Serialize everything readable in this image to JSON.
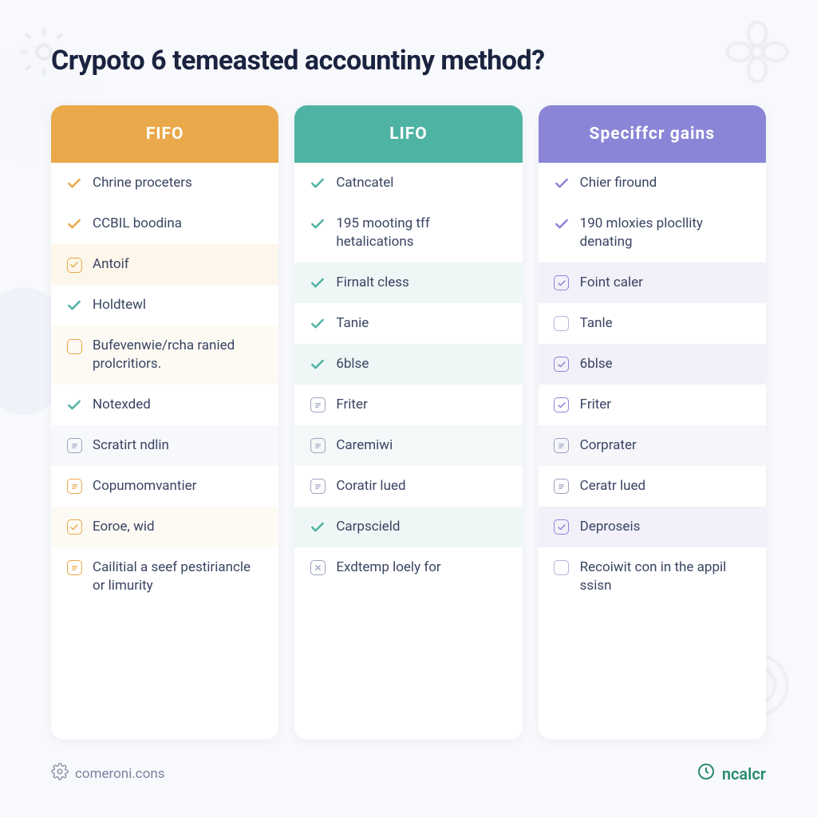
{
  "title": "Crypoto 6 temeasted accountiny method?",
  "background_color": "#f8f9fc",
  "text_color": "#3a4463",
  "title_color": "#1a2340",
  "title_fontsize": 34,
  "item_fontsize": 17,
  "columns": [
    {
      "id": "fifo",
      "header": "FIFO",
      "header_bg": "#e9a84a",
      "header_text": "#ffffff",
      "accent": "#e9a84a",
      "card_bg": "#ffffff",
      "alt_row_bg": "#fdfaf4",
      "items": [
        {
          "icon": "check",
          "icon_color": "#e9a84a",
          "label": "Chrine proceters",
          "bg": "#ffffff"
        },
        {
          "icon": "check",
          "icon_color": "#e9a84a",
          "label": "CCBIL boodina",
          "bg": "#ffffff"
        },
        {
          "icon": "check-box",
          "icon_color": "#e9a84a",
          "label": "Antoif",
          "bg": "#fdf6ea"
        },
        {
          "icon": "check",
          "icon_color": "#4fb3a3",
          "label": "Holdtewl",
          "bg": "#ffffff"
        },
        {
          "icon": "empty-box",
          "icon_color": "#e9a84a",
          "label": "Bufevenwie/rcha ranied prolcritiors.",
          "bg": "#fdfaf4"
        },
        {
          "icon": "check",
          "icon_color": "#4fb3a3",
          "label": "Notexded",
          "bg": "#ffffff"
        },
        {
          "icon": "doc-box",
          "icon_color": "#9aa3bd",
          "label": "Scratirt ndlin",
          "bg": "#f7f8fb"
        },
        {
          "icon": "doc-box",
          "icon_color": "#e9a84a",
          "label": "Copumomvantier",
          "bg": "#ffffff"
        },
        {
          "icon": "check-box",
          "icon_color": "#e9a84a",
          "label": "Eoroe, wid",
          "bg": "#fdfaf4"
        },
        {
          "icon": "doc-box",
          "icon_color": "#e9a84a",
          "label": "Cailitial a seef pestiriancle or limurity",
          "bg": "#ffffff"
        }
      ]
    },
    {
      "id": "lifo",
      "header": "LIFO",
      "header_bg": "#4fb3a3",
      "header_text": "#ffffff",
      "accent": "#4fb3a3",
      "card_bg": "#ffffff",
      "alt_row_bg": "#eef7f5",
      "items": [
        {
          "icon": "check",
          "icon_color": "#4fb3a3",
          "label": "Catncatel",
          "bg": "#ffffff"
        },
        {
          "icon": "check",
          "icon_color": "#4fb3a3",
          "label": "195 mooting tff hetalications",
          "bg": "#ffffff"
        },
        {
          "icon": "check",
          "icon_color": "#4fb3a3",
          "label": "Firnalt cless",
          "bg": "#eef7f5"
        },
        {
          "icon": "check",
          "icon_color": "#4fb3a3",
          "label": "Tanie",
          "bg": "#ffffff"
        },
        {
          "icon": "check",
          "icon_color": "#4fb3a3",
          "label": "6blse",
          "bg": "#eef7f5"
        },
        {
          "icon": "doc-box",
          "icon_color": "#9aa3bd",
          "label": "Friter",
          "bg": "#ffffff"
        },
        {
          "icon": "doc-box",
          "icon_color": "#9aa3bd",
          "label": "Caremiwi",
          "bg": "#f5f8f8"
        },
        {
          "icon": "doc-box",
          "icon_color": "#9aa3bd",
          "label": "Coratir lued",
          "bg": "#ffffff"
        },
        {
          "icon": "check",
          "icon_color": "#4fb3a3",
          "label": "Carpscield",
          "bg": "#eef7f5"
        },
        {
          "icon": "x-box",
          "icon_color": "#9aa3bd",
          "label": "Exdtemp loely for",
          "bg": "#ffffff"
        }
      ]
    },
    {
      "id": "specific",
      "header": "Speciffcr gains",
      "header_bg": "#8a85d6",
      "header_text": "#ffffff",
      "accent": "#8a85d6",
      "card_bg": "#ffffff",
      "alt_row_bg": "#f2f1fa",
      "items": [
        {
          "icon": "check",
          "icon_color": "#8a85d6",
          "label": "Chier firound",
          "bg": "#ffffff"
        },
        {
          "icon": "check",
          "icon_color": "#8a85d6",
          "label": "190 mloxies plocllity denating",
          "bg": "#ffffff"
        },
        {
          "icon": "check-box",
          "icon_color": "#8a85d6",
          "label": "Foint caler",
          "bg": "#f2f1fa"
        },
        {
          "icon": "empty-box",
          "icon_color": "#b6b2dd",
          "label": "Tanle",
          "bg": "#ffffff"
        },
        {
          "icon": "check-box",
          "icon_color": "#8a85d6",
          "label": "6blse",
          "bg": "#f2f1fa"
        },
        {
          "icon": "check-box",
          "icon_color": "#8a85d6",
          "label": "Friter",
          "bg": "#ffffff"
        },
        {
          "icon": "doc-box",
          "icon_color": "#9aa3bd",
          "label": "Corprater",
          "bg": "#f5f5fa"
        },
        {
          "icon": "doc-box",
          "icon_color": "#9aa3bd",
          "label": "Ceratr lued",
          "bg": "#ffffff"
        },
        {
          "icon": "check-box",
          "icon_color": "#8a85d6",
          "label": "Deproseis",
          "bg": "#f2f1fa"
        },
        {
          "icon": "empty-box",
          "icon_color": "#b6b2dd",
          "label": "Recoiwit con in the appil ssisn",
          "bg": "#ffffff"
        }
      ]
    }
  ],
  "footer": {
    "left_icon": "gear",
    "left_text": "comeroni.cons",
    "left_color": "#8b93a9",
    "right_icon": "circle",
    "right_text": "ncalcr",
    "right_color": "#2a8a70"
  }
}
